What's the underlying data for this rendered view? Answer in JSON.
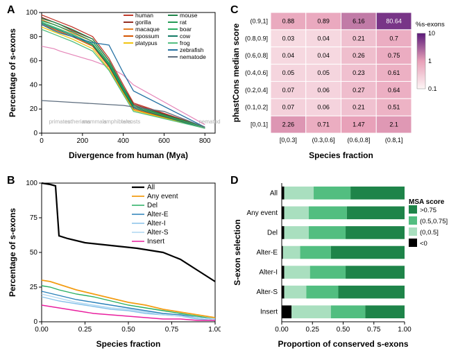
{
  "panelA": {
    "letter": "A",
    "type": "line",
    "xlabel": "Divergence from human (Mya)",
    "ylabel": "Percentage of s-exons",
    "xlim": [
      0,
      850
    ],
    "ylim": [
      0,
      100
    ],
    "ytick_step": 20,
    "xtick_step": 200,
    "label_fontsize": 12,
    "clade_labels": [
      "primates",
      "eutherians",
      "mammals",
      "amphibians",
      "teleosts",
      "nematode"
    ],
    "clade_color": "#b0b0b0",
    "clade_fontsize": 8,
    "background_color": "#ffffff",
    "series": [
      {
        "name": "human",
        "color": "#c0392b",
        "points": [
          [
            0,
            98
          ],
          [
            60,
            94
          ],
          [
            90,
            92
          ],
          [
            150,
            88
          ],
          [
            250,
            80
          ],
          [
            330,
            62
          ],
          [
            400,
            40
          ],
          [
            450,
            25
          ],
          [
            800,
            5
          ]
        ]
      },
      {
        "name": "gorilla",
        "color": "#922b21",
        "points": [
          [
            0,
            96
          ],
          [
            60,
            92
          ],
          [
            90,
            90
          ],
          [
            150,
            85
          ],
          [
            250,
            78
          ],
          [
            330,
            60
          ],
          [
            400,
            38
          ],
          [
            450,
            24
          ],
          [
            800,
            5
          ]
        ]
      },
      {
        "name": "macaque",
        "color": "#e67e22",
        "points": [
          [
            0,
            94
          ],
          [
            60,
            90
          ],
          [
            90,
            88
          ],
          [
            150,
            83
          ],
          [
            250,
            76
          ],
          [
            330,
            58
          ],
          [
            400,
            36
          ],
          [
            450,
            22
          ],
          [
            800,
            4
          ]
        ]
      },
      {
        "name": "opossum",
        "color": "#d35400",
        "points": [
          [
            0,
            90
          ],
          [
            60,
            86
          ],
          [
            90,
            84
          ],
          [
            150,
            80
          ],
          [
            250,
            72
          ],
          [
            330,
            55
          ],
          [
            400,
            34
          ],
          [
            450,
            20
          ],
          [
            800,
            4
          ]
        ]
      },
      {
        "name": "platypus",
        "color": "#f1c40f",
        "points": [
          [
            0,
            88
          ],
          [
            60,
            84
          ],
          [
            90,
            82
          ],
          [
            150,
            78
          ],
          [
            250,
            70
          ],
          [
            330,
            53
          ],
          [
            400,
            33
          ],
          [
            450,
            19
          ],
          [
            800,
            4
          ]
        ]
      },
      {
        "name": "mouse",
        "color": "#1e8449",
        "points": [
          [
            0,
            95
          ],
          [
            60,
            92
          ],
          [
            90,
            90
          ],
          [
            150,
            86
          ],
          [
            250,
            78
          ],
          [
            330,
            60
          ],
          [
            400,
            38
          ],
          [
            450,
            23
          ],
          [
            800,
            5
          ]
        ]
      },
      {
        "name": "rat",
        "color": "#229954",
        "points": [
          [
            0,
            93
          ],
          [
            60,
            90
          ],
          [
            90,
            88
          ],
          [
            150,
            84
          ],
          [
            250,
            76
          ],
          [
            330,
            58
          ],
          [
            400,
            37
          ],
          [
            450,
            22
          ],
          [
            800,
            5
          ]
        ]
      },
      {
        "name": "boar",
        "color": "#27ae60",
        "points": [
          [
            0,
            92
          ],
          [
            60,
            88
          ],
          [
            90,
            86
          ],
          [
            150,
            82
          ],
          [
            250,
            74
          ],
          [
            330,
            57
          ],
          [
            400,
            36
          ],
          [
            450,
            21
          ],
          [
            800,
            4
          ]
        ]
      },
      {
        "name": "cow",
        "color": "#117a65",
        "points": [
          [
            0,
            91
          ],
          [
            60,
            87
          ],
          [
            90,
            85
          ],
          [
            150,
            81
          ],
          [
            250,
            73
          ],
          [
            330,
            56
          ],
          [
            400,
            35
          ],
          [
            450,
            21
          ],
          [
            800,
            4
          ]
        ]
      },
      {
        "name": "frog",
        "color": "#52be80",
        "points": [
          [
            0,
            86
          ],
          [
            60,
            82
          ],
          [
            90,
            80
          ],
          [
            150,
            76
          ],
          [
            250,
            68
          ],
          [
            330,
            52
          ],
          [
            400,
            32
          ],
          [
            450,
            18
          ],
          [
            800,
            4
          ]
        ]
      },
      {
        "name": "zebrafish",
        "color": "#2471a3",
        "points": [
          [
            0,
            90
          ],
          [
            60,
            85
          ],
          [
            90,
            83
          ],
          [
            150,
            80
          ],
          [
            250,
            75
          ],
          [
            330,
            73
          ],
          [
            400,
            50
          ],
          [
            450,
            35
          ],
          [
            800,
            5
          ]
        ]
      },
      {
        "name": "nematode",
        "color": "#5d6d7e",
        "points": [
          [
            0,
            27
          ],
          [
            200,
            25
          ],
          [
            400,
            23
          ],
          [
            600,
            18
          ],
          [
            800,
            5
          ]
        ]
      }
    ],
    "legend_pink_line": {
      "show": true,
      "color": "#e585b8",
      "points": [
        [
          0,
          72
        ],
        [
          60,
          70
        ],
        [
          90,
          68
        ],
        [
          150,
          65
        ],
        [
          250,
          60
        ],
        [
          330,
          55
        ],
        [
          400,
          48
        ],
        [
          450,
          40
        ],
        [
          800,
          7
        ]
      ]
    }
  },
  "panelB": {
    "letter": "B",
    "type": "line",
    "xlabel": "Species fraction",
    "ylabel": "Percentage of s-exons",
    "xlim": [
      0,
      1
    ],
    "ylim": [
      0,
      100
    ],
    "ytick_step": 25,
    "xtick_step": 0.25,
    "label_fontsize": 12,
    "background_color": "#ffffff",
    "series": [
      {
        "name": "All",
        "color": "#000000",
        "width": 2.2,
        "points": [
          [
            0,
            100
          ],
          [
            0.05,
            99
          ],
          [
            0.08,
            98
          ],
          [
            0.1,
            62
          ],
          [
            0.15,
            60
          ],
          [
            0.25,
            57
          ],
          [
            0.4,
            55
          ],
          [
            0.55,
            53
          ],
          [
            0.7,
            50
          ],
          [
            0.8,
            45
          ],
          [
            0.9,
            37
          ],
          [
            0.95,
            33
          ],
          [
            1.0,
            29
          ]
        ]
      },
      {
        "name": "Any event",
        "color": "#f39c12",
        "width": 1.8,
        "points": [
          [
            0,
            30
          ],
          [
            0.05,
            29
          ],
          [
            0.1,
            27
          ],
          [
            0.2,
            23
          ],
          [
            0.3,
            20
          ],
          [
            0.4,
            17
          ],
          [
            0.5,
            14
          ],
          [
            0.6,
            12
          ],
          [
            0.7,
            9
          ],
          [
            0.8,
            7
          ],
          [
            0.9,
            5
          ],
          [
            1.0,
            3
          ]
        ]
      },
      {
        "name": "Del",
        "color": "#27ae60",
        "width": 1.4,
        "points": [
          [
            0,
            26
          ],
          [
            0.05,
            25
          ],
          [
            0.1,
            23
          ],
          [
            0.2,
            20
          ],
          [
            0.3,
            18
          ],
          [
            0.4,
            15
          ],
          [
            0.5,
            12
          ],
          [
            0.6,
            10
          ],
          [
            0.7,
            8
          ],
          [
            0.8,
            6
          ],
          [
            0.9,
            4
          ],
          [
            1.0,
            2
          ]
        ]
      },
      {
        "name": "Alter-E",
        "color": "#2980b9",
        "width": 1.4,
        "points": [
          [
            0,
            22
          ],
          [
            0.1,
            19
          ],
          [
            0.2,
            16
          ],
          [
            0.3,
            14
          ],
          [
            0.4,
            12
          ],
          [
            0.5,
            10
          ],
          [
            0.6,
            8
          ],
          [
            0.7,
            6
          ],
          [
            0.8,
            5
          ],
          [
            0.9,
            3
          ],
          [
            1.0,
            2
          ]
        ]
      },
      {
        "name": "Alter-I",
        "color": "#85c1e9",
        "width": 1.4,
        "points": [
          [
            0,
            18
          ],
          [
            0.1,
            15
          ],
          [
            0.2,
            13
          ],
          [
            0.3,
            11
          ],
          [
            0.4,
            9
          ],
          [
            0.5,
            8
          ],
          [
            0.6,
            6
          ],
          [
            0.7,
            5
          ],
          [
            0.8,
            4
          ],
          [
            0.9,
            2
          ],
          [
            1.0,
            1
          ]
        ]
      },
      {
        "name": "Alter-S",
        "color": "#aed6f1",
        "width": 1.4,
        "points": [
          [
            0,
            20
          ],
          [
            0.1,
            17
          ],
          [
            0.2,
            14
          ],
          [
            0.3,
            12
          ],
          [
            0.4,
            10
          ],
          [
            0.5,
            9
          ],
          [
            0.6,
            7
          ],
          [
            0.7,
            5
          ],
          [
            0.8,
            4
          ],
          [
            0.9,
            3
          ],
          [
            1.0,
            2
          ]
        ]
      },
      {
        "name": "Insert",
        "color": "#e91e9e",
        "width": 1.4,
        "points": [
          [
            0,
            12
          ],
          [
            0.1,
            10
          ],
          [
            0.2,
            8
          ],
          [
            0.3,
            6
          ],
          [
            0.4,
            5
          ],
          [
            0.5,
            4
          ],
          [
            0.6,
            3
          ],
          [
            0.7,
            2
          ],
          [
            0.8,
            2
          ],
          [
            0.9,
            1
          ],
          [
            1.0,
            1
          ]
        ]
      }
    ]
  },
  "panelC": {
    "letter": "C",
    "type": "heatmap",
    "xlabel": "Species fraction",
    "ylabel": "phastCons median score",
    "label_fontsize": 12,
    "legend_title": "%s-exons",
    "legend_ticks": [
      "10",
      "1",
      "0.1"
    ],
    "text_fontsize": 9,
    "border_color": "#ffffff",
    "color_lo": "#fdf5f5",
    "color_mid": "#e8a0b8",
    "color_hi": "#5b1a7a",
    "xcats": [
      "[0,0.3]",
      "(0.3,0.6]",
      "(0.6,0.8]",
      "(0.8,1]"
    ],
    "ycats": [
      "(0.9,1]",
      "(0.8,0.9]",
      "(0.6,0.8]",
      "(0.4,0.6]",
      "(0.2,0.4]",
      "(0.1,0.2]",
      "[0,0.1]"
    ],
    "values": [
      [
        0.88,
        0.89,
        6.16,
        80.64
      ],
      [
        0.03,
        0.04,
        0.21,
        0.7
      ],
      [
        0.04,
        0.04,
        0.26,
        0.75
      ],
      [
        0.05,
        0.05,
        0.23,
        0.61
      ],
      [
        0.07,
        0.06,
        0.27,
        0.64
      ],
      [
        0.07,
        0.06,
        0.21,
        0.51
      ],
      [
        2.26,
        0.71,
        1.47,
        2.1
      ]
    ]
  },
  "panelD": {
    "letter": "D",
    "type": "stacked-bar",
    "xlabel": "Proportion of conserved s-exons",
    "ylabel": "S-exon selection",
    "label_fontsize": 12,
    "legend_title": "MSA score",
    "xlim": [
      0,
      1
    ],
    "xtick_step": 0.25,
    "categories": [
      "All",
      "Any event",
      "Del",
      "Alter-E",
      "Alter-I",
      "Alter-S",
      "Insert"
    ],
    "segments": [
      {
        "name": ">0.75",
        "color": "#1e8449"
      },
      {
        "name": "(0.5,0.75]",
        "color": "#52be80"
      },
      {
        "name": "(0,0.5]",
        "color": "#a9dfbf"
      },
      {
        "name": "<0",
        "color": "#000000"
      }
    ],
    "data": [
      {
        "lt0": 0.02,
        "lo": 0.24,
        "mid": 0.3,
        "hi": 0.44
      },
      {
        "lt0": 0.02,
        "lo": 0.2,
        "mid": 0.31,
        "hi": 0.47
      },
      {
        "lt0": 0.02,
        "lo": 0.2,
        "mid": 0.3,
        "hi": 0.48
      },
      {
        "lt0": 0.01,
        "lo": 0.14,
        "mid": 0.25,
        "hi": 0.6
      },
      {
        "lt0": 0.02,
        "lo": 0.21,
        "mid": 0.29,
        "hi": 0.48
      },
      {
        "lt0": 0.02,
        "lo": 0.18,
        "mid": 0.26,
        "hi": 0.54
      },
      {
        "lt0": 0.08,
        "lo": 0.32,
        "mid": 0.28,
        "hi": 0.32
      }
    ],
    "bar_height": 0.65,
    "background_color": "#ffffff"
  }
}
